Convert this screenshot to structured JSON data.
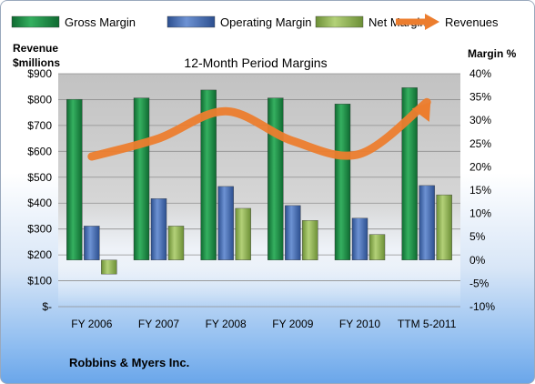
{
  "chart_data": {
    "type": "bar",
    "title": "12-Month Period Margins",
    "left_axis_title": [
      "Revenue",
      "$millions"
    ],
    "right_axis_title": "Margin %",
    "categories": [
      "FY 2006",
      "FY 2007",
      "FY 2008",
      "FY 2009",
      "FY 2010",
      "TTM 5-2011"
    ],
    "left_ylim": [
      0,
      900
    ],
    "left_ticks": [
      "$-",
      "$100",
      "$200",
      "$300",
      "$400",
      "$500",
      "$600",
      "$700",
      "$800",
      "$900"
    ],
    "right_ylim": [
      -10,
      40
    ],
    "right_ticks": [
      "-10%",
      "-5%",
      "0%",
      "5%",
      "10%",
      "15%",
      "20%",
      "25%",
      "30%",
      "35%",
      "40%"
    ],
    "legend_position": "top",
    "series": [
      {
        "name": "Gross Margin",
        "type": "bar",
        "axis": "right",
        "color": "#1e8a45",
        "values": [
          34.5,
          34.8,
          36.5,
          34.8,
          33.5,
          37
        ]
      },
      {
        "name": "Operating Margin",
        "type": "bar",
        "axis": "right",
        "color": "#4a6fb5",
        "values": [
          7.3,
          13.2,
          15.8,
          11.7,
          9,
          16
        ]
      },
      {
        "name": "Net Margin",
        "type": "bar",
        "axis": "right",
        "color": "#8fb357",
        "values": [
          -3,
          7.3,
          11.1,
          8.5,
          5.5,
          14
        ]
      },
      {
        "name": "Revenues",
        "type": "line",
        "axis": "left",
        "color": "#ec7d2e",
        "values": [
          580,
          650,
          755,
          640,
          590,
          790
        ]
      }
    ],
    "footer": "Robbins & Myers Inc."
  }
}
